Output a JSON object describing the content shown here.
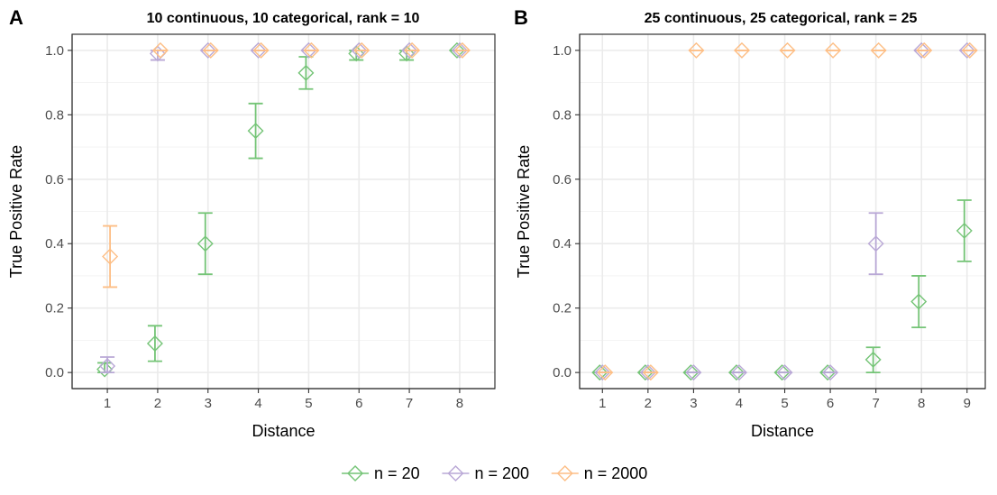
{
  "chart_data": [
    {
      "type": "scatter",
      "panel_label": "A",
      "title": "10 continuous, 10 categorical, rank = 10",
      "xlabel": "Distance",
      "ylabel": "True Positive Rate",
      "x_ticks": [
        "1",
        "2",
        "3",
        "4",
        "5",
        "6",
        "7",
        "8"
      ],
      "y_ticks": [
        "0.0",
        "0.2",
        "0.4",
        "0.6",
        "0.8",
        "1.0"
      ],
      "xlim": [
        0.3,
        8.7
      ],
      "ylim": [
        -0.05,
        1.05
      ],
      "grid": true,
      "series": [
        {
          "name": "n = 20",
          "color": "#74c476",
          "points": [
            {
              "x": 1,
              "y": 0.01,
              "lo": 0.0,
              "hi": 0.03
            },
            {
              "x": 2,
              "y": 0.09,
              "lo": 0.035,
              "hi": 0.145
            },
            {
              "x": 3,
              "y": 0.4,
              "lo": 0.305,
              "hi": 0.495
            },
            {
              "x": 4,
              "y": 0.75,
              "lo": 0.665,
              "hi": 0.835
            },
            {
              "x": 5,
              "y": 0.93,
              "lo": 0.88,
              "hi": 0.98
            },
            {
              "x": 6,
              "y": 0.99,
              "lo": 0.97,
              "hi": 1.0
            },
            {
              "x": 7,
              "y": 0.99,
              "lo": 0.97,
              "hi": 1.0
            },
            {
              "x": 8,
              "y": 1.0,
              "lo": 1.0,
              "hi": 1.0
            }
          ]
        },
        {
          "name": "n = 200",
          "color": "#b9a8d6",
          "points": [
            {
              "x": 1,
              "y": 0.02,
              "lo": 0.0,
              "hi": 0.048
            },
            {
              "x": 2,
              "y": 0.99,
              "lo": 0.97,
              "hi": 1.0
            },
            {
              "x": 3,
              "y": 1.0,
              "lo": 1.0,
              "hi": 1.0
            },
            {
              "x": 4,
              "y": 1.0,
              "lo": 1.0,
              "hi": 1.0
            },
            {
              "x": 5,
              "y": 1.0,
              "lo": 1.0,
              "hi": 1.0
            },
            {
              "x": 6,
              "y": 1.0,
              "lo": 1.0,
              "hi": 1.0
            },
            {
              "x": 7,
              "y": 1.0,
              "lo": 1.0,
              "hi": 1.0
            },
            {
              "x": 8,
              "y": 1.0,
              "lo": 1.0,
              "hi": 1.0
            }
          ]
        },
        {
          "name": "n = 2000",
          "color": "#fdbe85",
          "points": [
            {
              "x": 1,
              "y": 0.36,
              "lo": 0.265,
              "hi": 0.455
            },
            {
              "x": 2,
              "y": 1.0,
              "lo": 1.0,
              "hi": 1.0
            },
            {
              "x": 3,
              "y": 1.0,
              "lo": 1.0,
              "hi": 1.0
            },
            {
              "x": 4,
              "y": 1.0,
              "lo": 1.0,
              "hi": 1.0
            },
            {
              "x": 5,
              "y": 1.0,
              "lo": 1.0,
              "hi": 1.0
            },
            {
              "x": 6,
              "y": 1.0,
              "lo": 1.0,
              "hi": 1.0
            },
            {
              "x": 7,
              "y": 1.0,
              "lo": 1.0,
              "hi": 1.0
            },
            {
              "x": 8,
              "y": 1.0,
              "lo": 1.0,
              "hi": 1.0
            }
          ]
        }
      ]
    },
    {
      "type": "scatter",
      "panel_label": "B",
      "title": "25 continuous, 25 categorical, rank = 25",
      "xlabel": "Distance",
      "ylabel": "True Positive Rate",
      "x_ticks": [
        "1",
        "2",
        "3",
        "4",
        "5",
        "6",
        "7",
        "8",
        "9"
      ],
      "y_ticks": [
        "0.0",
        "0.2",
        "0.4",
        "0.6",
        "0.8",
        "1.0"
      ],
      "xlim": [
        0.5,
        9.4
      ],
      "ylim": [
        -0.05,
        1.05
      ],
      "grid": true,
      "series": [
        {
          "name": "n = 20",
          "color": "#74c476",
          "points": [
            {
              "x": 1,
              "y": 0.0,
              "lo": 0.0,
              "hi": 0.0
            },
            {
              "x": 2,
              "y": 0.0,
              "lo": 0.0,
              "hi": 0.0
            },
            {
              "x": 3,
              "y": 0.0,
              "lo": 0.0,
              "hi": 0.0
            },
            {
              "x": 4,
              "y": 0.0,
              "lo": 0.0,
              "hi": 0.0
            },
            {
              "x": 5,
              "y": 0.0,
              "lo": 0.0,
              "hi": 0.0
            },
            {
              "x": 6,
              "y": 0.0,
              "lo": 0.0,
              "hi": 0.0
            },
            {
              "x": 7,
              "y": 0.04,
              "lo": 0.0,
              "hi": 0.078
            },
            {
              "x": 8,
              "y": 0.22,
              "lo": 0.14,
              "hi": 0.3
            },
            {
              "x": 9,
              "y": 0.44,
              "lo": 0.345,
              "hi": 0.535
            }
          ]
        },
        {
          "name": "n = 200",
          "color": "#b9a8d6",
          "points": [
            {
              "x": 1,
              "y": 0.0,
              "lo": 0.0,
              "hi": 0.0
            },
            {
              "x": 2,
              "y": 0.0,
              "lo": 0.0,
              "hi": 0.0
            },
            {
              "x": 3,
              "y": 0.0,
              "lo": 0.0,
              "hi": 0.0
            },
            {
              "x": 4,
              "y": 0.0,
              "lo": 0.0,
              "hi": 0.0
            },
            {
              "x": 5,
              "y": 0.0,
              "lo": 0.0,
              "hi": 0.0
            },
            {
              "x": 6,
              "y": 0.0,
              "lo": 0.0,
              "hi": 0.0
            },
            {
              "x": 7,
              "y": 0.4,
              "lo": 0.305,
              "hi": 0.495
            },
            {
              "x": 8,
              "y": 1.0,
              "lo": 1.0,
              "hi": 1.0
            },
            {
              "x": 9,
              "y": 1.0,
              "lo": 1.0,
              "hi": 1.0
            }
          ]
        },
        {
          "name": "n = 2000",
          "color": "#fdbe85",
          "points": [
            {
              "x": 1,
              "y": 0.0,
              "lo": 0.0,
              "hi": 0.0
            },
            {
              "x": 2,
              "y": 0.0,
              "lo": 0.0,
              "hi": 0.0
            },
            {
              "x": 3,
              "y": 1.0,
              "lo": 1.0,
              "hi": 1.0
            },
            {
              "x": 4,
              "y": 1.0,
              "lo": 1.0,
              "hi": 1.0
            },
            {
              "x": 5,
              "y": 1.0,
              "lo": 1.0,
              "hi": 1.0
            },
            {
              "x": 6,
              "y": 1.0,
              "lo": 1.0,
              "hi": 1.0
            },
            {
              "x": 7,
              "y": 1.0,
              "lo": 1.0,
              "hi": 1.0
            },
            {
              "x": 8,
              "y": 1.0,
              "lo": 1.0,
              "hi": 1.0
            },
            {
              "x": 9,
              "y": 1.0,
              "lo": 1.0,
              "hi": 1.0
            }
          ]
        }
      ]
    }
  ],
  "legend": {
    "position": "bottom",
    "items": [
      {
        "label": "n = 20",
        "color": "#74c476"
      },
      {
        "label": "n = 200",
        "color": "#b9a8d6"
      },
      {
        "label": "n = 2000",
        "color": "#fdbe85"
      }
    ]
  }
}
